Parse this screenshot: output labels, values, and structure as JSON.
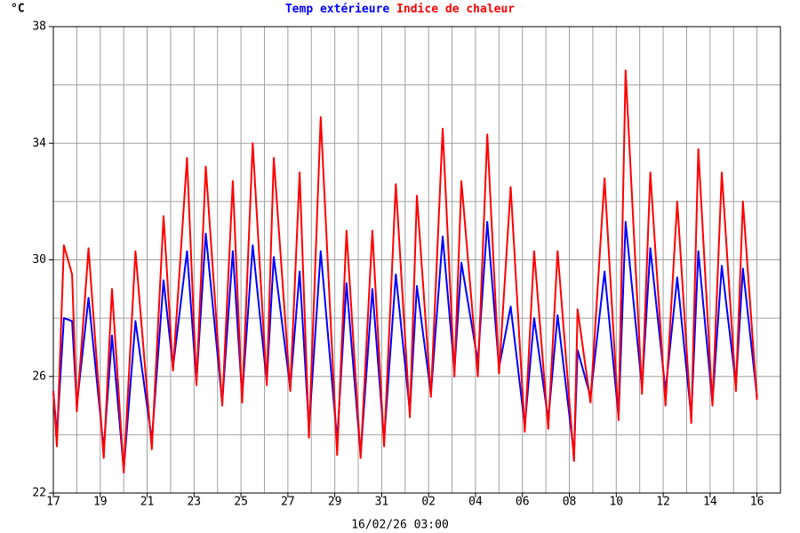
{
  "chart_data": {
    "type": "line",
    "y_unit": "°C",
    "xlabel": "16/02/26 03:00",
    "xlim": [
      0,
      31
    ],
    "xticks": [
      {
        "value": 0,
        "label": "17"
      },
      {
        "value": 2,
        "label": "19"
      },
      {
        "value": 4,
        "label": "21"
      },
      {
        "value": 6,
        "label": "23"
      },
      {
        "value": 8,
        "label": "25"
      },
      {
        "value": 10,
        "label": "27"
      },
      {
        "value": 12,
        "label": "29"
      },
      {
        "value": 14,
        "label": "31"
      },
      {
        "value": 16,
        "label": "02"
      },
      {
        "value": 18,
        "label": "04"
      },
      {
        "value": 20,
        "label": "06"
      },
      {
        "value": 22,
        "label": "08"
      },
      {
        "value": 24,
        "label": "10"
      },
      {
        "value": 26,
        "label": "12"
      },
      {
        "value": 28,
        "label": "14"
      },
      {
        "value": 30,
        "label": "16"
      }
    ],
    "xminorticks": [
      1,
      3,
      5,
      7,
      9,
      11,
      13,
      15,
      17,
      19,
      21,
      23,
      25,
      27,
      29
    ],
    "ylim": [
      22,
      38
    ],
    "yticks": [
      22,
      26,
      30,
      34,
      38
    ],
    "yminorticks": [
      24,
      28,
      32,
      36
    ],
    "grid": true,
    "x": [
      0,
      0.15,
      0.45,
      0.8,
      1.0,
      1.5,
      2.15,
      2.5,
      3.0,
      3.5,
      4.2,
      4.7,
      5.1,
      5.7,
      6.1,
      6.5,
      7.2,
      7.65,
      8.05,
      8.5,
      9.1,
      9.4,
      10.1,
      10.5,
      10.9,
      11.4,
      12.1,
      12.5,
      13.1,
      13.6,
      14.1,
      14.6,
      15.2,
      15.5,
      16.1,
      16.6,
      17.1,
      17.4,
      18.1,
      18.5,
      19.0,
      19.5,
      20.1,
      20.5,
      21.1,
      21.5,
      22.2,
      22.35,
      22.9,
      23.5,
      24.1,
      24.4,
      25.1,
      25.45,
      26.1,
      26.6,
      27.2,
      27.5,
      28.1,
      28.5,
      29.1,
      29.4,
      30.0
    ],
    "series": [
      {
        "name": "Temp extérieure",
        "color": "#0000ff",
        "values": [
          25.5,
          24.0,
          28.0,
          27.9,
          25.0,
          28.7,
          23.5,
          27.4,
          22.8,
          27.9,
          23.8,
          29.3,
          26.3,
          30.3,
          25.8,
          30.9,
          25.1,
          30.3,
          25.3,
          30.5,
          25.8,
          30.1,
          25.6,
          29.6,
          24.2,
          30.3,
          23.8,
          29.2,
          23.3,
          29.0,
          23.8,
          29.5,
          24.8,
          29.1,
          25.4,
          30.8,
          26.2,
          29.9,
          26.5,
          31.3,
          26.3,
          28.4,
          24.3,
          28.0,
          24.5,
          28.1,
          23.3,
          26.9,
          25.3,
          29.6,
          24.6,
          31.3,
          25.6,
          30.4,
          25.5,
          29.4,
          24.6,
          30.3,
          25.1,
          29.8,
          25.7,
          29.7,
          25.3
        ]
      },
      {
        "name": "Indice de chaleur",
        "color": "#ff0000",
        "values": [
          25.5,
          23.6,
          30.5,
          29.5,
          24.8,
          30.4,
          23.2,
          29.0,
          22.7,
          30.3,
          23.5,
          31.5,
          26.2,
          33.5,
          25.7,
          33.2,
          25.0,
          32.7,
          25.1,
          34.0,
          25.7,
          33.5,
          25.5,
          33.0,
          23.9,
          34.9,
          23.3,
          31.0,
          23.2,
          31.0,
          23.6,
          32.6,
          24.6,
          32.2,
          25.3,
          34.5,
          26.0,
          32.7,
          26.0,
          34.3,
          26.1,
          32.5,
          24.1,
          30.3,
          24.2,
          30.3,
          23.1,
          28.3,
          25.1,
          32.8,
          24.5,
          36.5,
          25.4,
          33.0,
          25.0,
          32.0,
          24.4,
          33.8,
          25.0,
          33.0,
          25.5,
          32.0,
          25.2
        ]
      }
    ]
  }
}
